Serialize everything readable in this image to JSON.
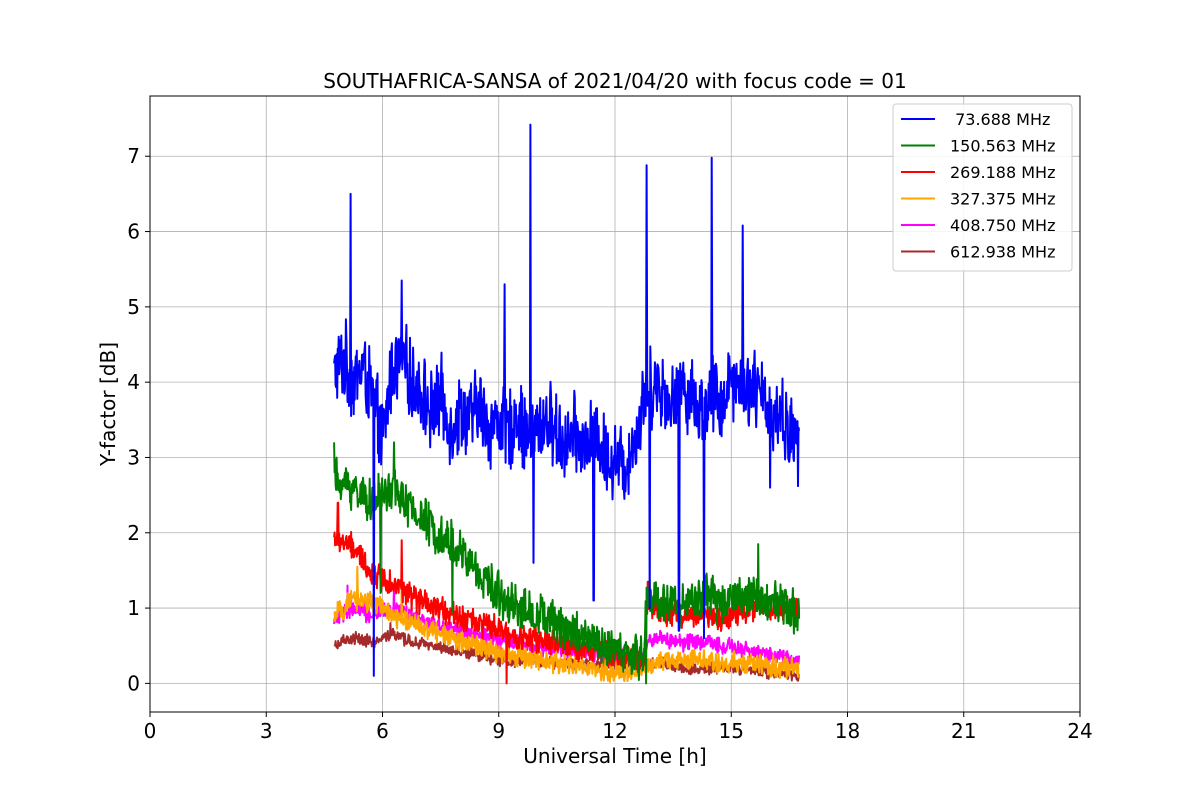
{
  "chart_data": {
    "type": "line",
    "title": "SOUTHAFRICA-SANSA of 2021/04/20 with focus code = 01",
    "xlabel": "Universal Time [h]",
    "ylabel": "Y-factor [dB]",
    "xlim": [
      0,
      24
    ],
    "ylim": [
      -0.38,
      7.8
    ],
    "xticks": [
      0,
      3,
      6,
      9,
      12,
      15,
      18,
      21,
      24
    ],
    "yticks": [
      0,
      1,
      2,
      3,
      4,
      5,
      6,
      7
    ],
    "grid": true,
    "legend": "top-right",
    "series": [
      {
        "name": " 73.688 MHz",
        "color": "#0000ff",
        "x": [
          4.75,
          5.0,
          5.25,
          5.5,
          5.75,
          6.0,
          6.25,
          6.5,
          6.75,
          7.0,
          7.25,
          7.5,
          7.75,
          8.0,
          8.25,
          8.5,
          8.75,
          9.0,
          9.25,
          9.5,
          9.75,
          10.0,
          10.25,
          10.5,
          10.75,
          11.0,
          11.25,
          11.5,
          11.75,
          12.0,
          12.25,
          12.5,
          12.75,
          13.0,
          13.25,
          13.5,
          13.75,
          14.0,
          14.25,
          14.5,
          14.75,
          15.0,
          15.25,
          15.5,
          15.75,
          16.0,
          16.25,
          16.5,
          16.75
        ],
        "y": [
          4.1,
          4.3,
          4.0,
          4.2,
          3.8,
          3.2,
          4.2,
          4.3,
          4.0,
          3.9,
          3.6,
          3.8,
          3.4,
          3.6,
          3.5,
          3.7,
          3.4,
          3.5,
          3.3,
          3.6,
          3.2,
          3.4,
          3.5,
          3.3,
          3.2,
          3.3,
          3.1,
          3.3,
          3.0,
          3.0,
          2.9,
          3.2,
          3.8,
          4.0,
          3.9,
          3.7,
          4.0,
          3.8,
          3.6,
          3.9,
          3.7,
          4.1,
          3.9,
          4.0,
          3.8,
          3.6,
          3.6,
          3.3,
          3.2
        ],
        "amp": 0.45,
        "spikes": [
          [
            5.18,
            6.5
          ],
          [
            5.78,
            0.1
          ],
          [
            6.5,
            5.35
          ],
          [
            9.15,
            5.3
          ],
          [
            9.82,
            7.42
          ],
          [
            9.9,
            1.6
          ],
          [
            11.45,
            1.1
          ],
          [
            12.82,
            6.88
          ],
          [
            12.9,
            1.0
          ],
          [
            13.65,
            0.7
          ],
          [
            14.3,
            0.6
          ],
          [
            14.5,
            6.98
          ],
          [
            15.3,
            6.08
          ],
          [
            16.0,
            2.6
          ]
        ]
      },
      {
        "name": "150.563 MHz",
        "color": "#008000",
        "x": [
          4.75,
          5.25,
          5.75,
          6.25,
          6.75,
          7.25,
          7.75,
          8.25,
          8.75,
          9.25,
          9.75,
          10.25,
          10.75,
          11.25,
          11.75,
          12.25,
          12.75,
          12.8,
          13.25,
          13.75,
          14.25,
          14.75,
          15.25,
          15.75,
          16.25,
          16.75
        ],
        "y": [
          2.7,
          2.6,
          2.4,
          2.6,
          2.3,
          2.1,
          1.9,
          1.6,
          1.3,
          1.1,
          0.95,
          0.85,
          0.75,
          0.6,
          0.45,
          0.4,
          0.35,
          1.15,
          1.1,
          1.05,
          1.15,
          1.1,
          1.2,
          1.1,
          1.05,
          0.9
        ],
        "amp": 0.25,
        "spikes": [
          [
            4.75,
            3.2
          ],
          [
            5.95,
            1.2
          ],
          [
            6.3,
            3.2
          ],
          [
            7.8,
            0.95
          ],
          [
            12.8,
            0.0
          ],
          [
            15.7,
            1.85
          ]
        ]
      },
      {
        "name": "269.188 MHz",
        "color": "#ff0000",
        "x": [
          4.75,
          5.25,
          5.75,
          6.25,
          6.75,
          7.25,
          7.75,
          8.25,
          8.75,
          9.25,
          9.75,
          10.25,
          10.75,
          11.25,
          11.75,
          12.25,
          12.75,
          12.8,
          13.25,
          13.75,
          14.25,
          14.75,
          15.25,
          15.75,
          16.25,
          16.75
        ],
        "y": [
          1.95,
          1.8,
          1.45,
          1.35,
          1.15,
          1.0,
          0.95,
          0.85,
          0.75,
          0.65,
          0.6,
          0.55,
          0.5,
          0.45,
          0.4,
          0.35,
          0.35,
          1.0,
          0.95,
          0.9,
          0.9,
          0.85,
          0.95,
          1.0,
          1.0,
          1.0
        ],
        "amp": 0.15,
        "spikes": [
          [
            4.85,
            2.4
          ],
          [
            6.5,
            1.9
          ],
          [
            9.2,
            0.0
          ],
          [
            12.85,
            1.35
          ]
        ]
      },
      {
        "name": "327.375 MHz",
        "color": "#ffa500",
        "x": [
          4.75,
          5.25,
          5.75,
          6.25,
          6.75,
          7.25,
          7.75,
          8.25,
          8.75,
          9.25,
          9.75,
          10.25,
          10.75,
          11.25,
          11.75,
          12.25,
          12.75,
          13.25,
          13.75,
          14.25,
          14.75,
          15.25,
          15.75,
          16.25,
          16.75
        ],
        "y": [
          0.9,
          1.1,
          1.1,
          0.9,
          0.8,
          0.7,
          0.6,
          0.55,
          0.45,
          0.4,
          0.35,
          0.3,
          0.25,
          0.2,
          0.15,
          0.15,
          0.2,
          0.3,
          0.3,
          0.3,
          0.25,
          0.3,
          0.25,
          0.2,
          0.2
        ],
        "amp": 0.12,
        "spikes": [
          [
            5.35,
            1.55
          ],
          [
            6.5,
            1.3
          ]
        ]
      },
      {
        "name": "408.750 MHz",
        "color": "#ff00ff",
        "x": [
          4.75,
          5.25,
          5.75,
          6.25,
          6.75,
          7.25,
          7.75,
          8.25,
          8.75,
          9.25,
          9.75,
          10.25,
          10.75,
          11.25,
          11.75,
          12.25,
          12.75,
          12.8,
          13.25,
          13.75,
          14.25,
          14.75,
          15.25,
          15.75,
          16.25,
          16.75
        ],
        "y": [
          0.85,
          1.0,
          0.9,
          1.0,
          0.9,
          0.8,
          0.75,
          0.65,
          0.6,
          0.55,
          0.5,
          0.45,
          0.45,
          0.4,
          0.4,
          0.35,
          0.35,
          0.55,
          0.6,
          0.55,
          0.55,
          0.5,
          0.45,
          0.4,
          0.35,
          0.3
        ],
        "amp": 0.1,
        "spikes": [
          [
            5.1,
            1.3
          ],
          [
            6.3,
            1.3
          ]
        ]
      },
      {
        "name": "612.938 MHz",
        "color": "#a52a2a",
        "x": [
          4.75,
          5.25,
          5.75,
          6.25,
          6.75,
          7.25,
          7.75,
          8.25,
          8.75,
          9.25,
          9.75,
          10.25,
          10.75,
          11.25,
          11.75,
          12.25,
          12.75,
          13.25,
          13.75,
          14.25,
          14.75,
          15.25,
          15.75,
          16.25,
          16.75
        ],
        "y": [
          0.5,
          0.6,
          0.55,
          0.65,
          0.55,
          0.5,
          0.45,
          0.4,
          0.35,
          0.3,
          0.3,
          0.28,
          0.25,
          0.25,
          0.25,
          0.25,
          0.25,
          0.25,
          0.2,
          0.2,
          0.2,
          0.18,
          0.15,
          0.12,
          0.1
        ],
        "amp": 0.07,
        "spikes": [
          [
            6.2,
            0.8
          ]
        ]
      }
    ]
  }
}
